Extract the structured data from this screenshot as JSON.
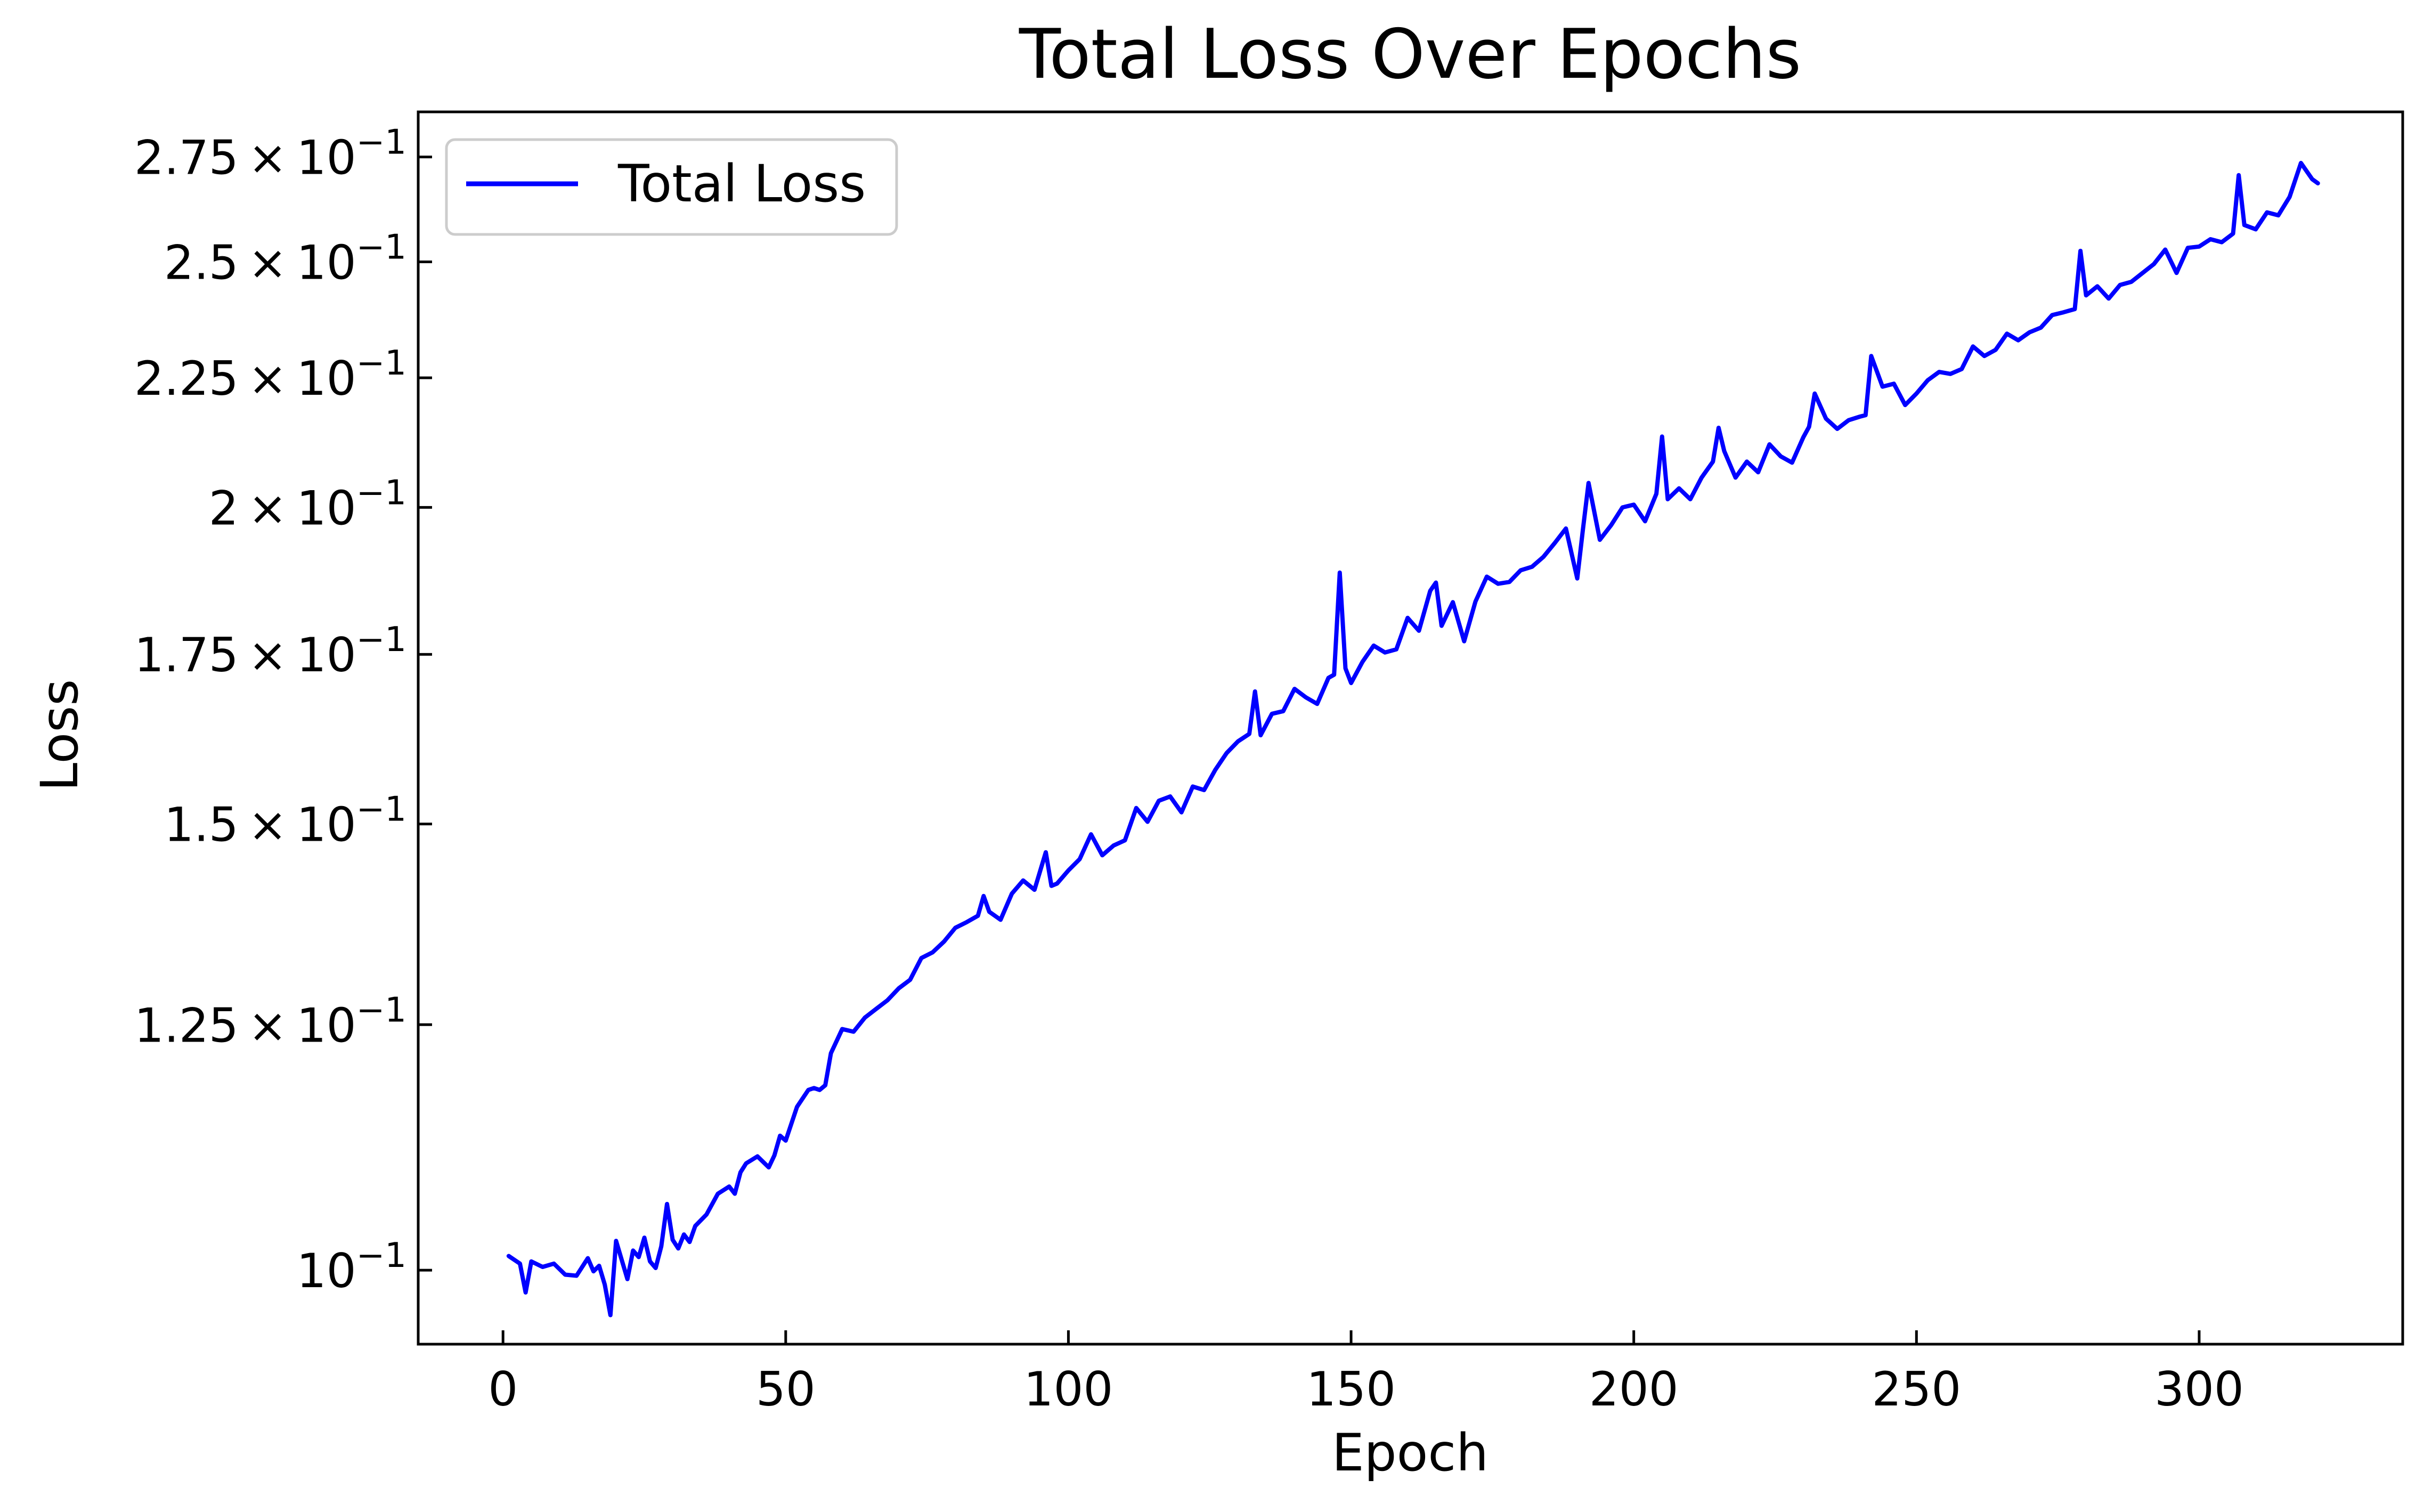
{
  "chart_data": {
    "type": "line",
    "title": "Total Loss Over Epochs",
    "xlabel": "Epoch",
    "ylabel": "Loss",
    "y_scale": "log",
    "xlim": [
      -15,
      336
    ],
    "ylim": [
      0.0935,
      0.2865
    ],
    "x_ticks": [
      {
        "value": 0,
        "label": "0"
      },
      {
        "value": 50,
        "label": "50"
      },
      {
        "value": 100,
        "label": "100"
      },
      {
        "value": 150,
        "label": "150"
      },
      {
        "value": 200,
        "label": "200"
      },
      {
        "value": 250,
        "label": "250"
      },
      {
        "value": 300,
        "label": "300"
      }
    ],
    "y_ticks": [
      {
        "value": 0.1,
        "mantissa": "",
        "exponent": "−1"
      },
      {
        "value": 0.125,
        "mantissa": "1.25",
        "exponent": "−1"
      },
      {
        "value": 0.15,
        "mantissa": "1.5",
        "exponent": "−1"
      },
      {
        "value": 0.175,
        "mantissa": "1.75",
        "exponent": "−1"
      },
      {
        "value": 0.2,
        "mantissa": "2",
        "exponent": "−1"
      },
      {
        "value": 0.225,
        "mantissa": "2.25",
        "exponent": "−1"
      },
      {
        "value": 0.25,
        "mantissa": "2.5",
        "exponent": "−1"
      },
      {
        "value": 0.275,
        "mantissa": "2.75",
        "exponent": "−1"
      }
    ],
    "grid": false,
    "legend_position": "top-left",
    "series": [
      {
        "name": "Total Loss",
        "color": "#0000ff",
        "x": [
          1,
          3,
          4,
          5,
          7,
          9,
          11,
          13,
          15,
          16,
          17,
          18,
          19,
          20,
          22,
          23,
          24,
          25,
          26,
          27,
          28,
          29,
          30,
          31,
          32,
          33,
          34,
          36,
          38,
          40,
          41,
          42,
          43,
          45,
          47,
          48,
          49,
          50,
          52,
          54,
          55,
          56,
          57,
          58,
          60,
          62,
          64,
          66,
          68,
          70,
          72,
          74,
          76,
          78,
          80,
          82,
          84,
          85,
          86,
          88,
          90,
          92,
          94,
          96,
          97,
          98,
          100,
          102,
          104,
          106,
          108,
          110,
          112,
          114,
          116,
          118,
          120,
          122,
          124,
          126,
          128,
          130,
          132,
          133,
          134,
          136,
          138,
          140,
          142,
          144,
          146,
          147,
          148,
          149,
          150,
          152,
          154,
          156,
          158,
          160,
          162,
          164,
          165,
          166,
          168,
          170,
          172,
          174,
          176,
          178,
          180,
          182,
          184,
          186,
          188,
          190,
          191,
          192,
          194,
          196,
          198,
          200,
          202,
          204,
          205,
          206,
          208,
          210,
          212,
          214,
          215,
          216,
          218,
          220,
          222,
          224,
          226,
          228,
          230,
          231,
          232,
          234,
          236,
          238,
          240,
          241,
          242,
          244,
          246,
          248,
          250,
          252,
          254,
          256,
          258,
          260,
          262,
          264,
          266,
          268,
          270,
          272,
          274,
          276,
          278,
          279,
          280,
          282,
          284,
          286,
          288,
          290,
          292,
          294,
          296,
          298,
          300,
          302,
          304,
          306,
          307,
          308,
          310,
          312,
          314,
          316,
          318,
          320,
          321
        ],
        "y": [
          0.1013,
          0.1006,
          0.098,
          0.1008,
          0.1003,
          0.1006,
          0.0996,
          0.0995,
          0.1011,
          0.0999,
          0.1004,
          0.0987,
          0.096,
          0.1027,
          0.0992,
          0.1018,
          0.1012,
          0.103,
          0.1008,
          0.1002,
          0.1022,
          0.1062,
          0.1028,
          0.102,
          0.1033,
          0.1026,
          0.1041,
          0.1052,
          0.1072,
          0.1079,
          0.1072,
          0.1093,
          0.1102,
          0.1109,
          0.1098,
          0.111,
          0.113,
          0.1125,
          0.116,
          0.1178,
          0.118,
          0.1178,
          0.1183,
          0.1218,
          0.1245,
          0.1242,
          0.1258,
          0.1268,
          0.1278,
          0.1292,
          0.1302,
          0.1328,
          0.1335,
          0.1348,
          0.1365,
          0.1372,
          0.138,
          0.1405,
          0.1385,
          0.1375,
          0.1408,
          0.1425,
          0.1413,
          0.1462,
          0.1418,
          0.1421,
          0.1438,
          0.1453,
          0.1486,
          0.1458,
          0.1471,
          0.1478,
          0.1522,
          0.1503,
          0.1532,
          0.1538,
          0.1516,
          0.1552,
          0.1547,
          0.1576,
          0.16,
          0.1617,
          0.1628,
          0.1692,
          0.1626,
          0.1658,
          0.1662,
          0.1696,
          0.1683,
          0.1673,
          0.1713,
          0.1718,
          0.1885,
          0.1728,
          0.1705,
          0.1738,
          0.1764,
          0.1753,
          0.1758,
          0.1809,
          0.1788,
          0.1854,
          0.1868,
          0.1796,
          0.1835,
          0.1771,
          0.1836,
          0.1878,
          0.1866,
          0.1869,
          0.1889,
          0.1895,
          0.1912,
          0.1936,
          0.1962,
          0.1875,
          0.196,
          0.2045,
          0.1942,
          0.1968,
          0.2,
          0.2005,
          0.1975,
          0.2025,
          0.2133,
          0.2015,
          0.2035,
          0.2015,
          0.2055,
          0.2085,
          0.215,
          0.2105,
          0.2055,
          0.2085,
          0.2065,
          0.2118,
          0.2095,
          0.2083,
          0.2132,
          0.2152,
          0.2218,
          0.2168,
          0.2148,
          0.2165,
          0.2172,
          0.2175,
          0.2295,
          0.2232,
          0.2238,
          0.2195,
          0.2218,
          0.2245,
          0.2262,
          0.2258,
          0.2268,
          0.2315,
          0.2295,
          0.2308,
          0.2342,
          0.2328,
          0.2345,
          0.2355,
          0.2382,
          0.2388,
          0.2395,
          0.2525,
          0.2425,
          0.2445,
          0.2418,
          0.2448,
          0.2455,
          0.2475,
          0.2495,
          0.2528,
          0.2475,
          0.2532,
          0.2535,
          0.2552,
          0.2545,
          0.2565,
          0.2705,
          0.2585,
          0.2575,
          0.2615,
          0.2608,
          0.2652,
          0.2735,
          0.2695,
          0.2685
        ]
      }
    ]
  }
}
